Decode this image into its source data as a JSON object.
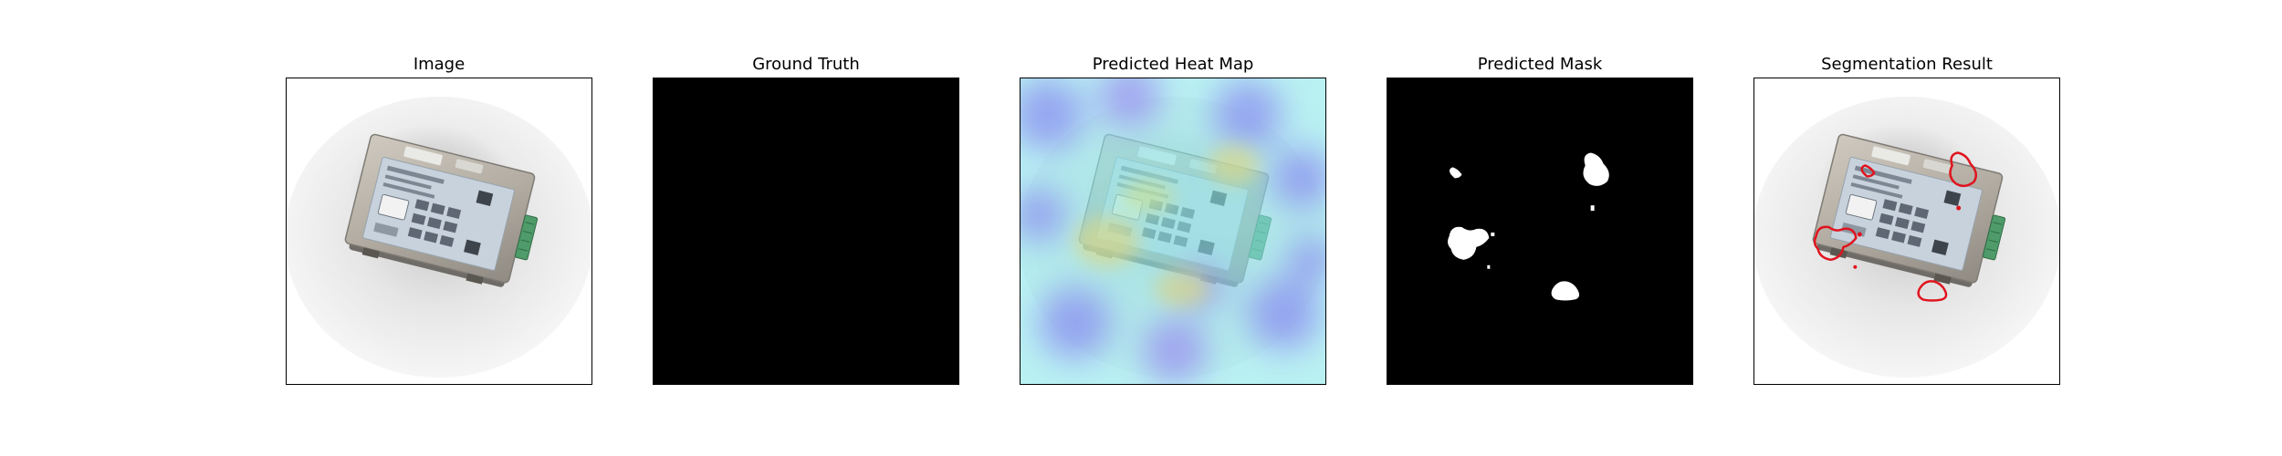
{
  "figure": {
    "panels": [
      {
        "id": "image",
        "title": "Image"
      },
      {
        "id": "ground-truth",
        "title": "Ground Truth"
      },
      {
        "id": "heat-map",
        "title": "Predicted Heat Map"
      },
      {
        "id": "mask",
        "title": "Predicted Mask"
      },
      {
        "id": "segmentation",
        "title": "Segmentation Result"
      }
    ],
    "colors": {
      "background": "#ffffff",
      "mask_background": "#000000",
      "mask_foreground": "#ffffff",
      "contour": "#e0141e",
      "heat_low": "#8a8cf0",
      "heat_mid": "#8ae8ea",
      "heat_high": "#d8d88a",
      "device_metal": "#b9b4aa",
      "device_label": "#c8d2dc",
      "connector": "#4f9b6a"
    }
  }
}
